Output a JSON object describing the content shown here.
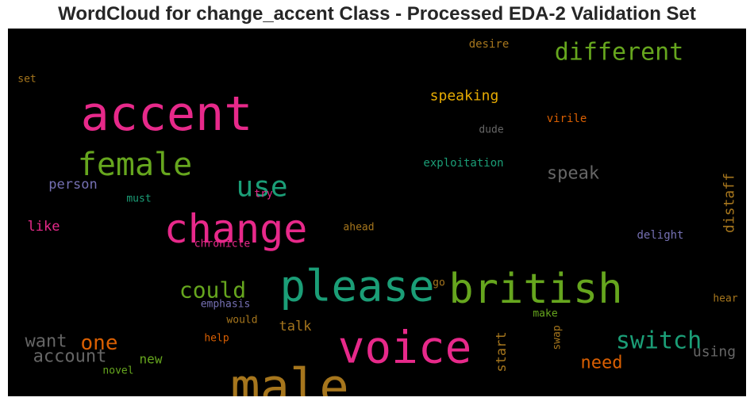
{
  "chart_data": {
    "type": "wordcloud",
    "title": "WordCloud for change_accent Class - Processed EDA-2 Validation Set",
    "background": "#000000",
    "words": [
      {
        "text": "accent",
        "color": "#e7298a"
      },
      {
        "text": "male",
        "color": "#a6761d"
      },
      {
        "text": "voice",
        "color": "#e7298a"
      },
      {
        "text": "change",
        "color": "#e7298a"
      },
      {
        "text": "please",
        "color": "#1b9e77"
      },
      {
        "text": "british",
        "color": "#66a61e"
      },
      {
        "text": "female",
        "color": "#66a61e"
      },
      {
        "text": "use",
        "color": "#1b9e77"
      },
      {
        "text": "different",
        "color": "#66a61e"
      },
      {
        "text": "switch",
        "color": "#1b9e77"
      },
      {
        "text": "could",
        "color": "#66a61e"
      },
      {
        "text": "one",
        "color": "#d95f02"
      },
      {
        "text": "want",
        "color": "#666666"
      },
      {
        "text": "account",
        "color": "#666666"
      },
      {
        "text": "speak",
        "color": "#666666"
      },
      {
        "text": "need",
        "color": "#d95f02"
      },
      {
        "text": "speaking",
        "color": "#e6ab02"
      },
      {
        "text": "distaff",
        "color": "#a6761d"
      },
      {
        "text": "using",
        "color": "#666666"
      },
      {
        "text": "person",
        "color": "#7570b3"
      },
      {
        "text": "like",
        "color": "#e7298a"
      },
      {
        "text": "talk",
        "color": "#a6761d"
      },
      {
        "text": "start",
        "color": "#a6761d"
      },
      {
        "text": "new",
        "color": "#66a61e"
      },
      {
        "text": "exploitation",
        "color": "#1b9e77"
      },
      {
        "text": "desire",
        "color": "#a6761d"
      },
      {
        "text": "virile",
        "color": "#d95f02"
      },
      {
        "text": "dude",
        "color": "#666666"
      },
      {
        "text": "set",
        "color": "#a6761d"
      },
      {
        "text": "must",
        "color": "#1b9e77"
      },
      {
        "text": "try",
        "color": "#e7298a"
      },
      {
        "text": "ahead",
        "color": "#a6761d"
      },
      {
        "text": "chronicle",
        "color": "#e7298a"
      },
      {
        "text": "delight",
        "color": "#7570b3"
      },
      {
        "text": "go",
        "color": "#a6761d"
      },
      {
        "text": "emphasis",
        "color": "#7570b3"
      },
      {
        "text": "would",
        "color": "#a6761d"
      },
      {
        "text": "make",
        "color": "#66a61e"
      },
      {
        "text": "hear",
        "color": "#a6761d"
      },
      {
        "text": "help",
        "color": "#d95f02"
      },
      {
        "text": "swap",
        "color": "#a6761d"
      },
      {
        "text": "novel",
        "color": "#66a61e"
      }
    ]
  }
}
